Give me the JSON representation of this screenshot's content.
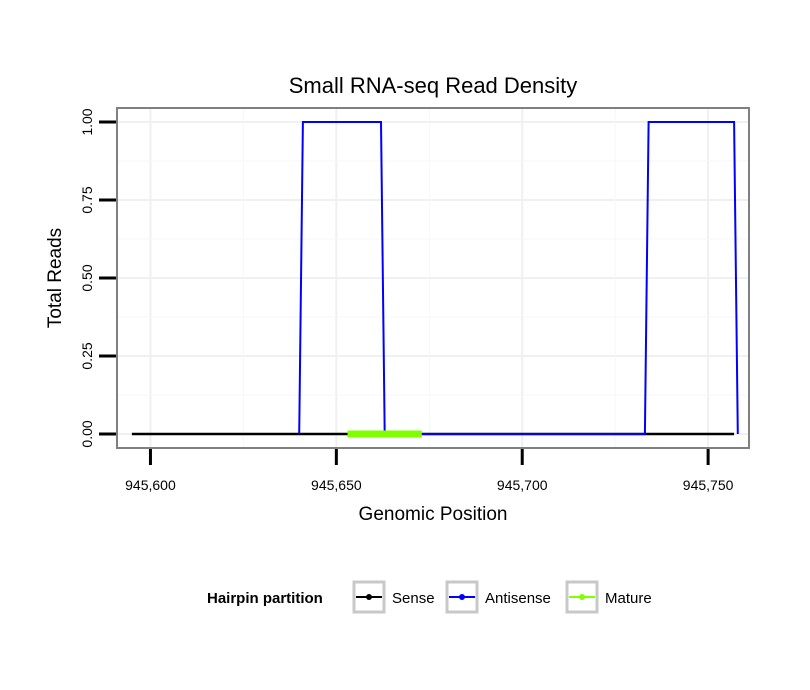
{
  "chart_data": {
    "type": "line",
    "title": "Small RNA-seq Read Density",
    "xlabel": "Genomic Position",
    "ylabel": "Total Reads",
    "xlim": [
      945591,
      945761
    ],
    "ylim": [
      -0.045,
      1.045
    ],
    "x_ticks": [
      945600,
      945650,
      945700,
      945750
    ],
    "x_tick_labels": [
      "945,600",
      "945,650",
      "945,700",
      "945,750"
    ],
    "y_ticks": [
      0,
      0.25,
      0.5,
      0.75,
      1.0
    ],
    "y_tick_labels": [
      "0.00",
      "0.25",
      "0.50",
      "0.75",
      "1.00"
    ],
    "grid": true,
    "legend": {
      "title": "Hairpin partition",
      "position": "bottom",
      "entries": [
        "Sense",
        "Antisense",
        "Mature"
      ]
    },
    "series": [
      {
        "name": "Sense",
        "color": "#000000",
        "points": [
          [
            945595,
            0
          ],
          [
            945757,
            0
          ]
        ]
      },
      {
        "name": "Antisense",
        "color": "#0000ff",
        "points": [
          [
            945640,
            0
          ],
          [
            945641,
            1
          ],
          [
            945662,
            1
          ],
          [
            945663,
            0
          ],
          [
            945733,
            0
          ],
          [
            945734,
            1
          ],
          [
            945757,
            1
          ],
          [
            945758,
            0
          ]
        ]
      },
      {
        "name": "Mature",
        "color": "#7fff00",
        "points": [
          [
            945653,
            0
          ],
          [
            945673,
            0
          ]
        ]
      }
    ]
  }
}
